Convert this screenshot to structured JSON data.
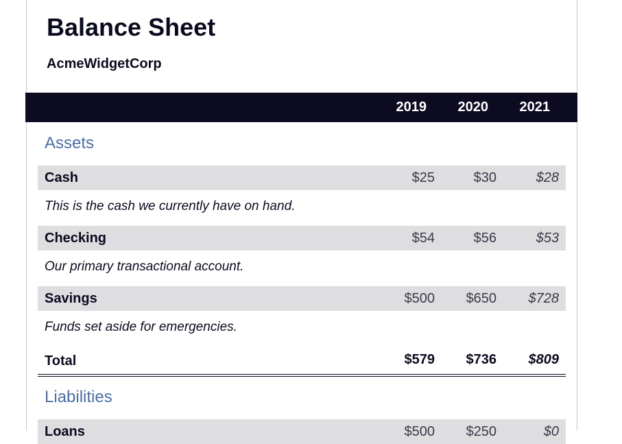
{
  "document": {
    "title": "Balance Sheet",
    "company": "AcmeWidgetCorp"
  },
  "header": {
    "years": [
      "2019",
      "2020",
      "2021"
    ]
  },
  "assets": {
    "section_title": "Assets",
    "items": [
      {
        "label": "Cash",
        "values": [
          "$25",
          "$30",
          "$28"
        ],
        "description": "This is the cash we currently have on hand."
      },
      {
        "label": "Checking",
        "values": [
          "$54",
          "$56",
          "$53"
        ],
        "description": "Our primary transactional account."
      },
      {
        "label": "Savings",
        "values": [
          "$500",
          "$650",
          "$728"
        ],
        "description": "Funds set aside for emergencies."
      }
    ],
    "total": {
      "label": "Total",
      "values": [
        "$579",
        "$736",
        "$809"
      ]
    }
  },
  "liabilities": {
    "section_title": "Liabilities",
    "items": [
      {
        "label": "Loans",
        "values": [
          "$500",
          "$250",
          "$0"
        ]
      }
    ]
  },
  "colors": {
    "header_bg": "#0c0b22",
    "section_title": "#4a6fa5",
    "row_bg": "#dedee0"
  }
}
